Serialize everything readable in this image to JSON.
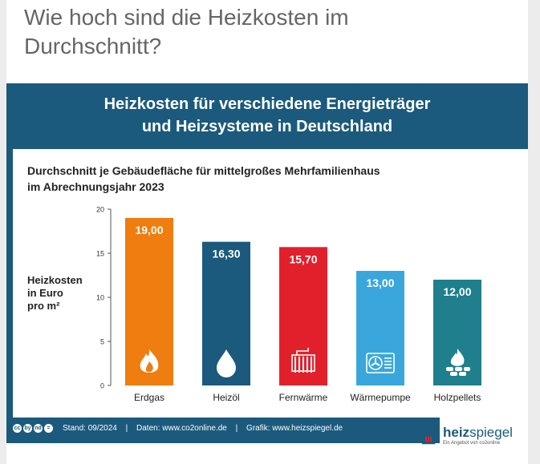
{
  "page": {
    "heading": "Wie hoch sind die Heizkosten im Durchschnitt?"
  },
  "graphic": {
    "title_line1": "Heizkosten für verschiedene Energieträger",
    "title_line2": "und Heizsysteme in Deutschland"
  },
  "chart_data": {
    "type": "bar",
    "subtitle_line1": "Durchschnitt je Gebäudefläche für mittelgroßes Mehrfamilienhaus",
    "subtitle_line2": "im Abrechnungsjahr 2023",
    "ylabel_lines": [
      "Heizkosten",
      "in Euro",
      "pro m²"
    ],
    "categories": [
      "Erdgas",
      "Heizöl",
      "Fernwärme",
      "Wärmepumpe",
      "Holzpellets"
    ],
    "values": [
      19.0,
      16.3,
      15.7,
      13.0,
      12.0
    ],
    "value_labels": [
      "19,00",
      "16,30",
      "15,70",
      "13,00",
      "12,00"
    ],
    "colors": [
      "#ef7d10",
      "#1b5a7c",
      "#e2202c",
      "#3aa7dc",
      "#1f7f8c"
    ],
    "icons": [
      "flame-icon",
      "oil-drop-icon",
      "radiator-icon",
      "heat-pump-icon",
      "pellet-fire-icon"
    ],
    "ylim": [
      0,
      20
    ],
    "yticks": [
      0,
      5,
      10,
      15,
      20
    ],
    "ytick_labels": [
      "0",
      "5",
      "10",
      "15",
      "20"
    ],
    "grid": false,
    "legend": "none"
  },
  "footer": {
    "license_icons": [
      "cc",
      "by",
      "nd",
      "="
    ],
    "stand": "Stand: 09/2024",
    "daten": "Daten: www.co2online.de",
    "grafik": "Grafik: www.heizspiegel.de",
    "separator": "|",
    "brand_bold": "heiz",
    "brand_light": "spiegel",
    "brand_sub": "Ein Angebot von co2online"
  }
}
